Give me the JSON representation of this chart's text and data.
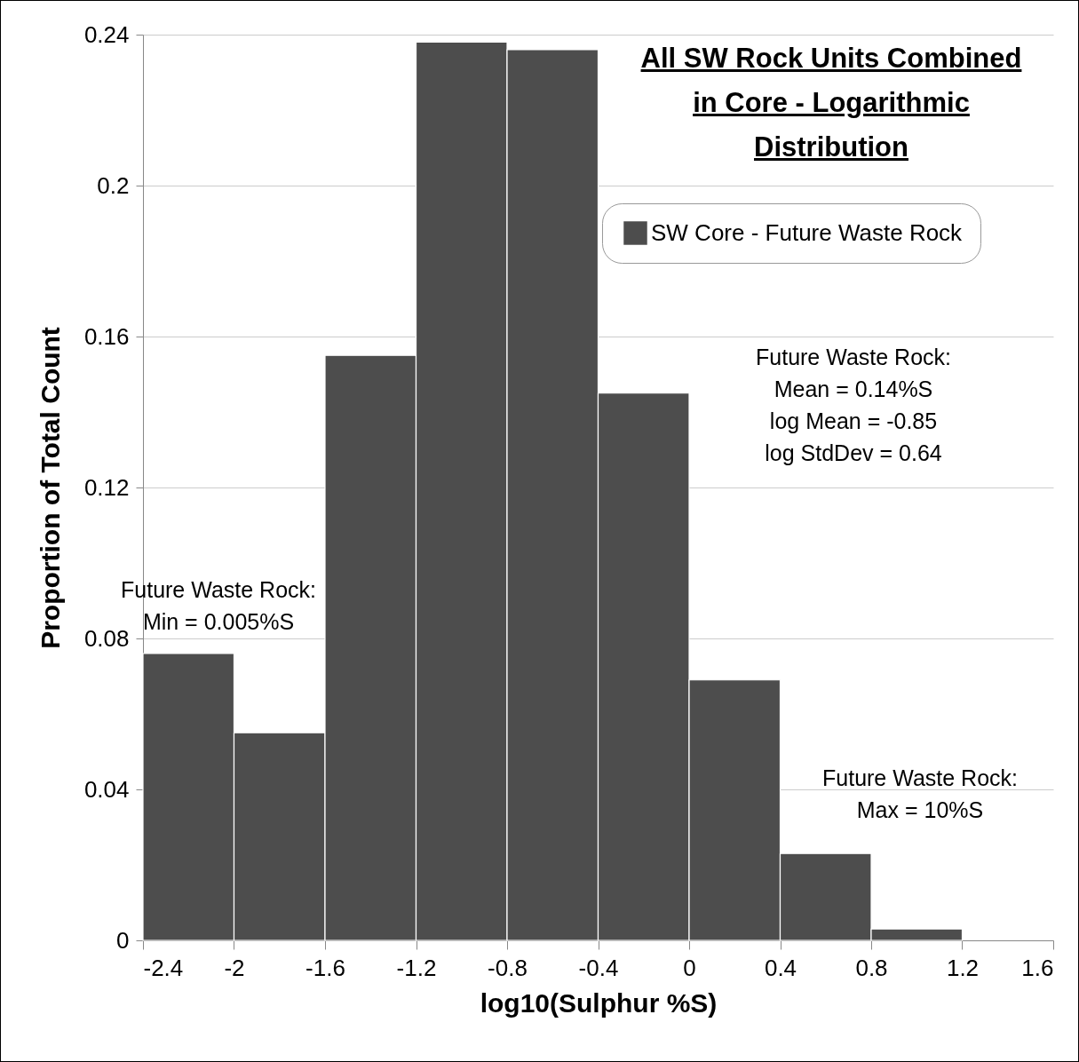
{
  "chart_data": {
    "type": "histogram",
    "title": "All SW Rock Units Combined in Core - Logarithmic Distribution",
    "xlabel": "log10(Sulphur %S)",
    "ylabel": "Proportion of Total Count",
    "bins": [
      -2.4,
      -2,
      -1.6,
      -1.2,
      -0.8,
      -0.4,
      0,
      0.4,
      0.8,
      1.2,
      1.6
    ],
    "series": [
      {
        "name": "SW Core - Future Waste Rock",
        "color": "#4d4d4d",
        "values": [
          0.076,
          0.055,
          0.155,
          0.238,
          0.236,
          0.145,
          0.069,
          0.023,
          0.003,
          0
        ]
      }
    ],
    "xlim": [
      -2.4,
      1.6
    ],
    "xticks": [
      -2.4,
      -2,
      -1.6,
      -1.2,
      -0.8,
      -0.4,
      0,
      0.4,
      0.8,
      1.2,
      1.6
    ],
    "ylim": [
      0,
      0.24
    ],
    "yticks": [
      0,
      0.04,
      0.08,
      0.12,
      0.16,
      0.2,
      0.24
    ],
    "grid": "y",
    "legend": "top right",
    "annotations": [
      "Future Waste Rock:\nMin = 0.005%S",
      "Future Waste Rock:\nMean = 0.14%S\nlog Mean = -0.85\nlog StdDev = 0.64",
      "Future Waste Rock:\nMax = 10%S"
    ]
  }
}
